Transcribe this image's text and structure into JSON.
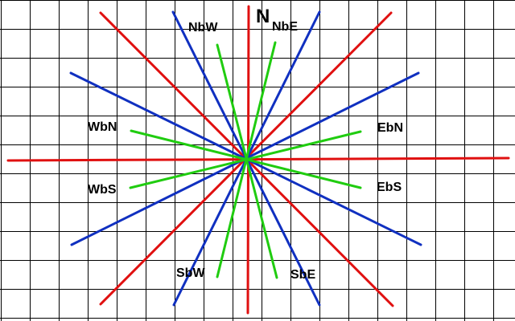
{
  "labels": {
    "n": "N",
    "nbw": "NbW",
    "nbe": "NbE",
    "wbn": "WbN",
    "ebn": "EbN",
    "wbs": "WbS",
    "ebs": "EbS",
    "sbw": "SbW",
    "sbe": "SbE"
  },
  "colors": {
    "cardinal_intercardinal": "#e01010",
    "secondary": "#1030c0",
    "by_points": "#20cc10",
    "grid": "#000000"
  }
}
